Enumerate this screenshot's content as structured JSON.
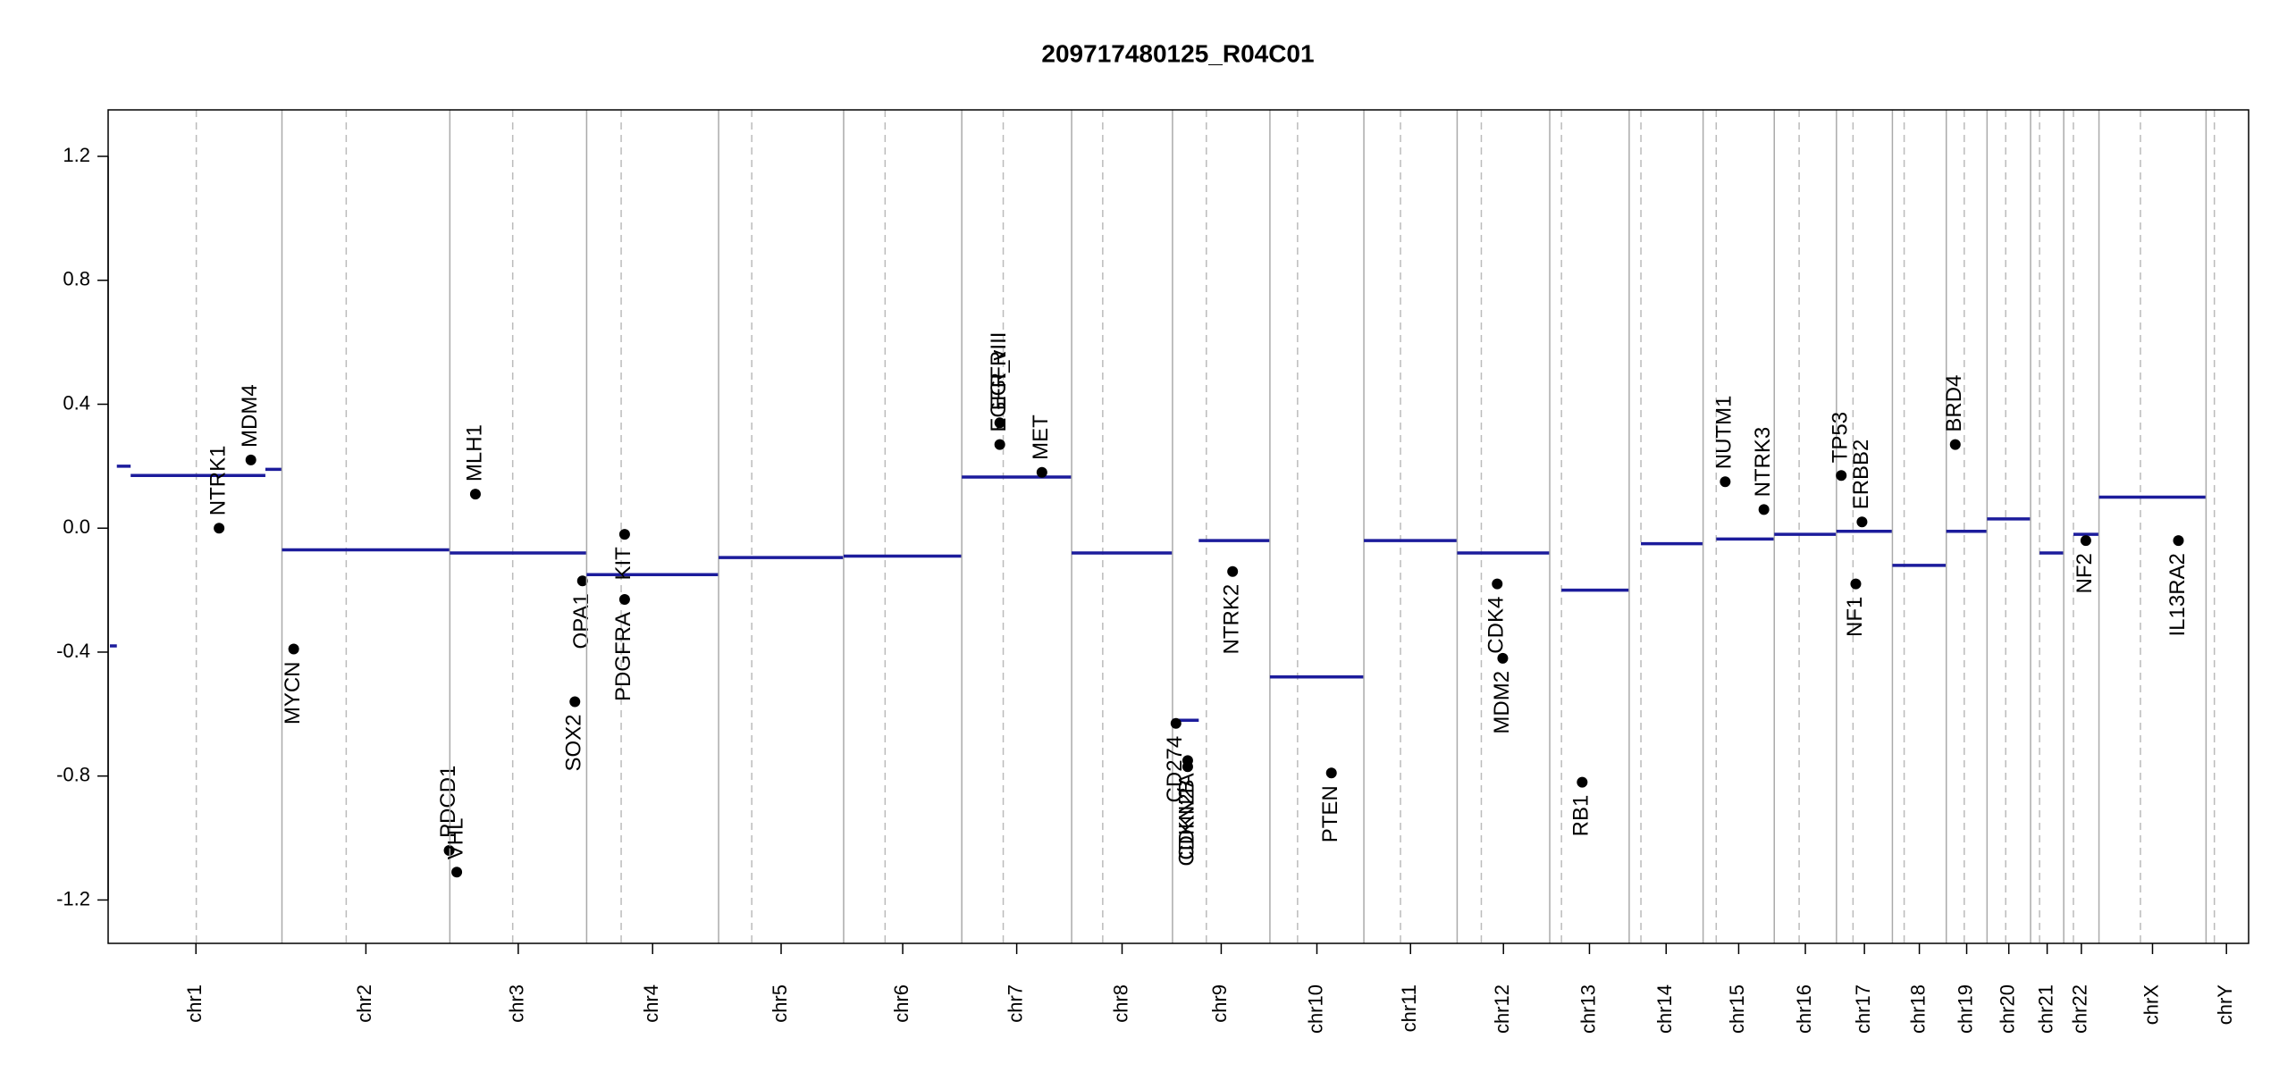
{
  "chart_data": {
    "type": "cnv",
    "title": "209717480125_R04C01",
    "ylim": [
      -1.34,
      1.35
    ],
    "yticks": [
      -1.2,
      -0.8,
      -0.4,
      {
        "value": 0,
        "label": "0.0"
      },
      0.4,
      0.8,
      1.2
    ],
    "segment_color": "#1c1c9c",
    "gene_color": "#000000",
    "chromosomes": [
      {
        "name": "chr1",
        "length": 249,
        "centromere": 125,
        "segments": [
          {
            "start": 0,
            "end": 10,
            "value": -0.38
          },
          {
            "start": 10,
            "end": 30,
            "value": 0.2
          },
          {
            "start": 30,
            "end": 225,
            "value": 0.17
          },
          {
            "start": 225,
            "end": 249,
            "value": 0.19
          }
        ],
        "genes": [
          {
            "name": "NTRK1",
            "position": 158,
            "value": 0.0
          },
          {
            "name": "MDM4",
            "position": 204,
            "value": 0.22
          }
        ]
      },
      {
        "name": "chr2",
        "length": 243,
        "centromere": 93,
        "segments": [
          {
            "start": 0,
            "end": 243,
            "value": -0.07
          }
        ],
        "genes": [
          {
            "name": "MYCN",
            "position": 17,
            "value": -0.39
          },
          {
            "name": "PDCD1",
            "position": 242,
            "value": -1.04
          }
        ]
      },
      {
        "name": "chr3",
        "length": 198,
        "centromere": 91,
        "segments": [
          {
            "start": 0,
            "end": 198,
            "value": -0.08
          }
        ],
        "genes": [
          {
            "name": "VHL",
            "position": 10,
            "value": -1.11
          },
          {
            "name": "MLH1",
            "position": 37,
            "value": 0.11
          },
          {
            "name": "SOX2",
            "position": 181,
            "value": -0.56
          },
          {
            "name": "OPA1",
            "position": 192,
            "value": -0.17
          }
        ]
      },
      {
        "name": "chr4",
        "length": 191,
        "centromere": 50,
        "segments": [
          {
            "start": 0,
            "end": 191,
            "value": -0.15
          }
        ],
        "genes": [
          {
            "name": "KIT",
            "position": 55,
            "value": -0.02
          },
          {
            "name": "PDGFRA",
            "position": 55,
            "value": -0.23
          }
        ]
      },
      {
        "name": "chr5",
        "length": 181,
        "centromere": 48,
        "segments": [
          {
            "start": 0,
            "end": 181,
            "value": -0.095
          }
        ],
        "genes": []
      },
      {
        "name": "chr6",
        "length": 171,
        "centromere": 60,
        "segments": [
          {
            "start": 0,
            "end": 171,
            "value": -0.09
          }
        ],
        "genes": []
      },
      {
        "name": "chr7",
        "length": 159,
        "centromere": 60,
        "segments": [
          {
            "start": 0,
            "end": 159,
            "value": 0.165
          }
        ],
        "genes": [
          {
            "name": "EGFR",
            "position": 55,
            "value": 0.34
          },
          {
            "name": "EGFR_vIII",
            "position": 55,
            "value": 0.27
          },
          {
            "name": "MET",
            "position": 116,
            "value": 0.18
          }
        ]
      },
      {
        "name": "chr8",
        "length": 146,
        "centromere": 45,
        "segments": [
          {
            "start": 0,
            "end": 146,
            "value": -0.08
          }
        ],
        "genes": []
      },
      {
        "name": "chr9",
        "length": 141,
        "centromere": 49,
        "segments": [
          {
            "start": 0,
            "end": 38,
            "value": -0.62
          },
          {
            "start": 38,
            "end": 141,
            "value": -0.04
          }
        ],
        "genes": [
          {
            "name": "CD274",
            "position": 5,
            "value": -0.63
          },
          {
            "name": "CDKN2A",
            "position": 22,
            "value": -0.75
          },
          {
            "name": "CDKN2B",
            "position": 22,
            "value": -0.77
          },
          {
            "name": "NTRK2",
            "position": 87,
            "value": -0.14
          }
        ]
      },
      {
        "name": "chr10",
        "length": 136,
        "centromere": 40,
        "segments": [
          {
            "start": 0,
            "end": 136,
            "value": -0.48
          }
        ],
        "genes": [
          {
            "name": "PTEN",
            "position": 89,
            "value": -0.79
          }
        ]
      },
      {
        "name": "chr11",
        "length": 135,
        "centromere": 53,
        "segments": [
          {
            "start": 0,
            "end": 135,
            "value": -0.04
          }
        ],
        "genes": []
      },
      {
        "name": "chr12",
        "length": 134,
        "centromere": 35,
        "segments": [
          {
            "start": 0,
            "end": 134,
            "value": -0.08
          }
        ],
        "genes": [
          {
            "name": "CDK4",
            "position": 58,
            "value": -0.18
          },
          {
            "name": "MDM2",
            "position": 66,
            "value": -0.42
          }
        ]
      },
      {
        "name": "chr13",
        "length": 115,
        "centromere": 17,
        "segments": [
          {
            "start": 17,
            "end": 115,
            "value": -0.2
          }
        ],
        "genes": [
          {
            "name": "RB1",
            "position": 47,
            "value": -0.82
          }
        ]
      },
      {
        "name": "chr14",
        "length": 107,
        "centromere": 17,
        "segments": [
          {
            "start": 17,
            "end": 107,
            "value": -0.05
          }
        ],
        "genes": []
      },
      {
        "name": "chr15",
        "length": 103,
        "centromere": 19,
        "segments": [
          {
            "start": 19,
            "end": 103,
            "value": -0.035
          }
        ],
        "genes": [
          {
            "name": "NUTM1",
            "position": 32,
            "value": 0.15
          },
          {
            "name": "NTRK3",
            "position": 88,
            "value": 0.06
          }
        ]
      },
      {
        "name": "chr16",
        "length": 90,
        "centromere": 36,
        "segments": [
          {
            "start": 0,
            "end": 90,
            "value": -0.02
          }
        ],
        "genes": []
      },
      {
        "name": "chr17",
        "length": 81,
        "centromere": 24,
        "segments": [
          {
            "start": 0,
            "end": 81,
            "value": -0.01
          }
        ],
        "genes": [
          {
            "name": "TP53",
            "position": 7,
            "value": 0.17
          },
          {
            "name": "NF1",
            "position": 28,
            "value": -0.18
          },
          {
            "name": "ERBB2",
            "position": 37,
            "value": 0.02
          }
        ]
      },
      {
        "name": "chr18",
        "length": 78,
        "centromere": 17,
        "segments": [
          {
            "start": 0,
            "end": 78,
            "value": -0.12
          }
        ],
        "genes": []
      },
      {
        "name": "chr19",
        "length": 59,
        "centromere": 26,
        "segments": [
          {
            "start": 0,
            "end": 59,
            "value": -0.01
          }
        ],
        "genes": [
          {
            "name": "BRD4",
            "position": 13,
            "value": 0.27
          }
        ]
      },
      {
        "name": "chr20",
        "length": 63,
        "centromere": 27,
        "segments": [
          {
            "start": 0,
            "end": 63,
            "value": 0.03
          }
        ],
        "genes": []
      },
      {
        "name": "chr21",
        "length": 48,
        "centromere": 13,
        "segments": [
          {
            "start": 13,
            "end": 48,
            "value": -0.08
          }
        ],
        "genes": []
      },
      {
        "name": "chr22",
        "length": 51,
        "centromere": 14,
        "segments": [
          {
            "start": 14,
            "end": 51,
            "value": -0.02
          }
        ],
        "genes": [
          {
            "name": "NF2",
            "position": 32,
            "value": -0.04
          }
        ]
      },
      {
        "name": "chrX",
        "length": 155,
        "centromere": 60,
        "segments": [
          {
            "start": 0,
            "end": 155,
            "value": 0.1
          }
        ],
        "genes": [
          {
            "name": "IL13RA2",
            "position": 115,
            "value": -0.04
          }
        ]
      },
      {
        "name": "chrY",
        "length": 59,
        "centromere": 12,
        "segments": [],
        "genes": []
      }
    ]
  }
}
